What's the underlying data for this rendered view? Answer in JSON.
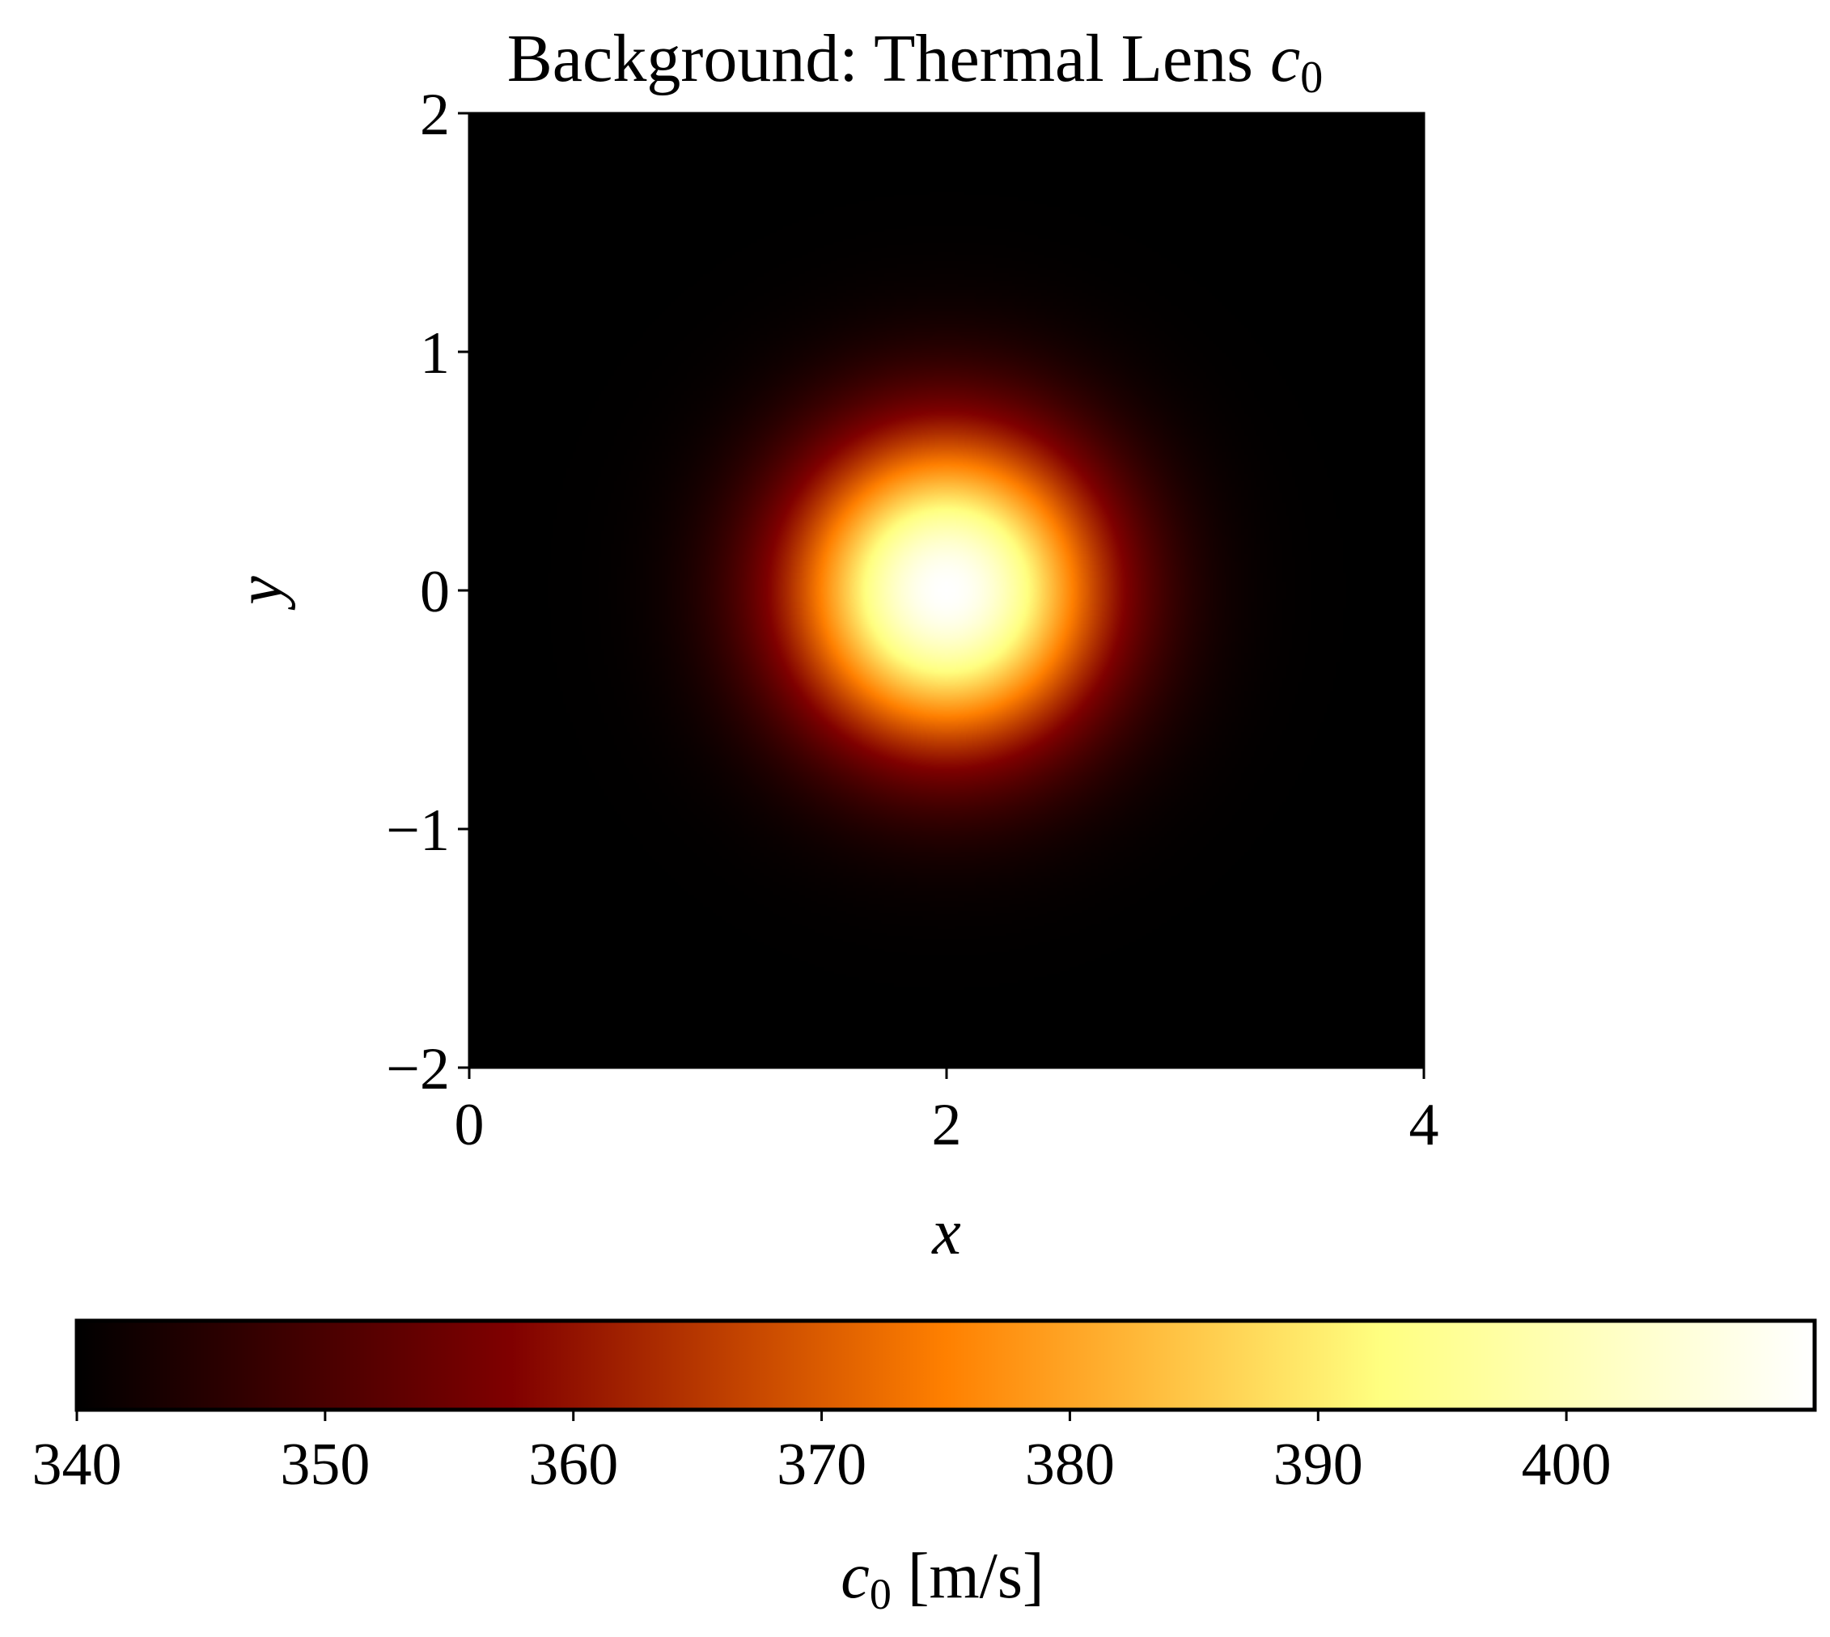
{
  "chart_data": {
    "type": "heatmap",
    "title_prefix": "Background: Thermal Lens ",
    "title_symbol": "c",
    "title_subscript": "0",
    "xlabel": "x",
    "ylabel": "y",
    "xlim": [
      0,
      4
    ],
    "ylim": [
      -2,
      2
    ],
    "x_ticks": [
      "0",
      "2",
      "4"
    ],
    "y_ticks": [
      "2",
      "1",
      "0",
      "−1",
      "−2"
    ],
    "field": {
      "shape": "gaussian",
      "center": [
        2,
        0
      ],
      "sigma": 0.45,
      "base_value": 340,
      "peak_value": 410
    },
    "colormap": "afmhot",
    "colorbar": {
      "orientation": "horizontal",
      "range": [
        340,
        410
      ],
      "ticks": [
        "340",
        "350",
        "360",
        "370",
        "380",
        "390",
        "400"
      ],
      "label_symbol": "c",
      "label_subscript": "0",
      "label_suffix": " [m/s]"
    }
  }
}
